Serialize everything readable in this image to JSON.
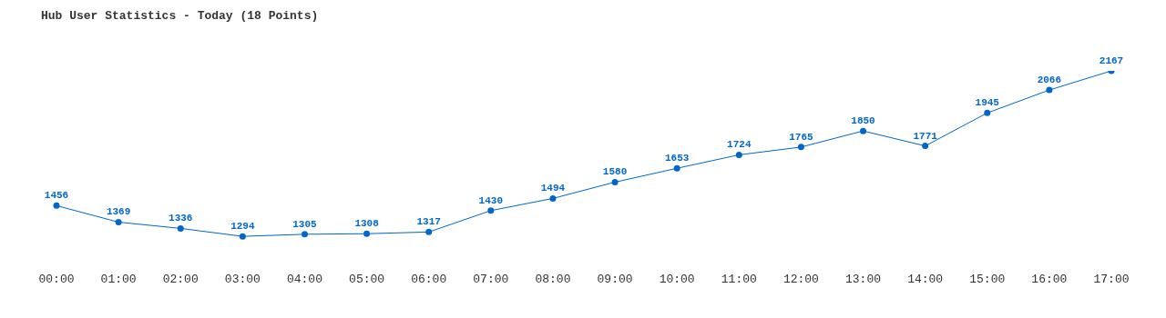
{
  "chart_data": {
    "type": "line",
    "title": "Hub User Statistics - Today (18 Points)",
    "categories": [
      "00:00",
      "01:00",
      "02:00",
      "03:00",
      "04:00",
      "05:00",
      "06:00",
      "07:00",
      "08:00",
      "09:00",
      "10:00",
      "11:00",
      "12:00",
      "13:00",
      "14:00",
      "15:00",
      "16:00",
      "17:00"
    ],
    "series": [
      {
        "color": "#0066cc",
        "values": [
          1456,
          1369,
          1336,
          1294,
          1305,
          1308,
          1317,
          1430,
          1494,
          1580,
          1653,
          1724,
          1765,
          1850,
          1771,
          1945,
          2066,
          2167
        ]
      }
    ],
    "data_labels": true,
    "marker": "circle",
    "grid": false,
    "legend": false
  }
}
